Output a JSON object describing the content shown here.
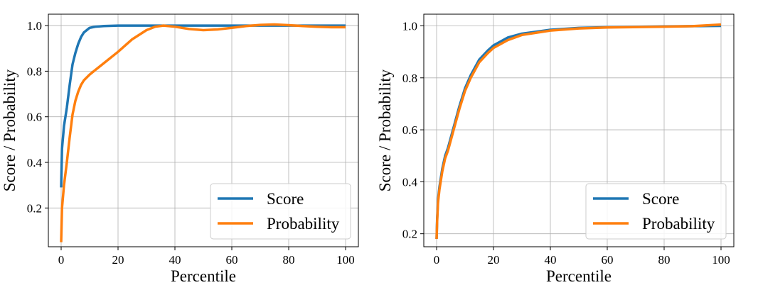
{
  "chart_data": [
    {
      "type": "line",
      "xlabel": "Percentile",
      "ylabel": "Score / Probability",
      "xlim": [
        -4.5,
        104.5
      ],
      "ylim": [
        0.03,
        1.05
      ],
      "xticks": [
        0,
        20,
        40,
        60,
        80,
        100
      ],
      "yticks": [
        0.2,
        0.4,
        0.6,
        0.8,
        1.0
      ],
      "xtick_labels": [
        "0",
        "20",
        "40",
        "60",
        "80",
        "100"
      ],
      "ytick_labels": [
        "0.2",
        "0.4",
        "0.6",
        "0.8",
        "1.0"
      ],
      "grid": true,
      "legend_position": "lower-right",
      "series": [
        {
          "name": "Score",
          "color": "#1f77b4",
          "x": [
            0,
            0.3,
            1,
            2,
            3,
            4,
            5,
            6,
            7,
            8,
            9,
            10,
            12,
            15,
            20,
            30,
            40,
            60,
            80,
            100
          ],
          "y": [
            0.29,
            0.46,
            0.56,
            0.64,
            0.74,
            0.83,
            0.88,
            0.92,
            0.95,
            0.97,
            0.98,
            0.99,
            0.995,
            0.998,
            1.0,
            1.0,
            1.0,
            1.0,
            1.0,
            1.0
          ]
        },
        {
          "name": "Probability",
          "color": "#ff7f0e",
          "x": [
            0,
            0.3,
            1,
            2,
            3,
            4,
            5,
            6,
            7,
            8,
            10,
            12,
            15,
            20,
            25,
            30,
            33,
            36,
            40,
            45,
            50,
            55,
            60,
            65,
            70,
            75,
            80,
            85,
            90,
            95,
            100
          ],
          "y": [
            0.05,
            0.2,
            0.3,
            0.4,
            0.51,
            0.61,
            0.67,
            0.71,
            0.74,
            0.76,
            0.785,
            0.805,
            0.835,
            0.885,
            0.94,
            0.98,
            0.995,
            1.0,
            0.995,
            0.985,
            0.98,
            0.983,
            0.99,
            0.998,
            1.003,
            1.005,
            1.002,
            0.998,
            0.995,
            0.993,
            0.993
          ]
        }
      ]
    },
    {
      "type": "line",
      "xlabel": "Percentile",
      "ylabel": "Score / Probability",
      "xlim": [
        -4.5,
        104.5
      ],
      "ylim": [
        0.15,
        1.045
      ],
      "xticks": [
        0,
        20,
        40,
        60,
        80,
        100
      ],
      "yticks": [
        0.2,
        0.4,
        0.6,
        0.8,
        1.0
      ],
      "xtick_labels": [
        "0",
        "20",
        "40",
        "60",
        "80",
        "100"
      ],
      "ytick_labels": [
        "0.2",
        "0.4",
        "0.6",
        "0.8",
        "1.0"
      ],
      "grid": true,
      "legend_position": "lower-right",
      "series": [
        {
          "name": "Score",
          "color": "#1f77b4",
          "x": [
            0,
            0.2,
            0.5,
            1,
            2,
            3,
            4,
            5,
            6,
            8,
            10,
            12,
            15,
            18,
            20,
            25,
            30,
            40,
            50,
            60,
            80,
            100
          ],
          "y": [
            0.18,
            0.26,
            0.33,
            0.38,
            0.45,
            0.5,
            0.53,
            0.57,
            0.61,
            0.69,
            0.76,
            0.81,
            0.87,
            0.905,
            0.925,
            0.955,
            0.97,
            0.985,
            0.992,
            0.995,
            0.998,
            1.0
          ]
        },
        {
          "name": "Probability",
          "color": "#ff7f0e",
          "x": [
            0,
            0.2,
            0.5,
            1,
            2,
            3,
            4,
            5,
            6,
            8,
            10,
            12,
            15,
            18,
            20,
            25,
            30,
            40,
            50,
            60,
            80,
            90,
            100
          ],
          "y": [
            0.18,
            0.25,
            0.32,
            0.37,
            0.44,
            0.49,
            0.52,
            0.56,
            0.6,
            0.68,
            0.75,
            0.8,
            0.86,
            0.895,
            0.915,
            0.945,
            0.965,
            0.982,
            0.99,
            0.994,
            0.997,
            0.999,
            1.005
          ]
        }
      ]
    }
  ]
}
